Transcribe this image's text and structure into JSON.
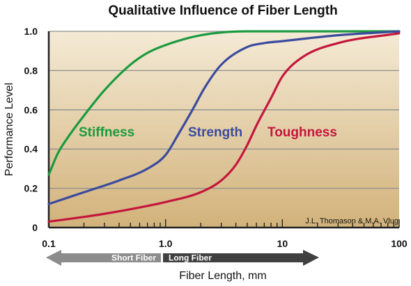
{
  "chart_data": {
    "type": "line",
    "title": "Qualitative Influence of Fiber Length",
    "xlabel": "Fiber Length, mm",
    "ylabel": "Performance Level",
    "xscale": "log",
    "xlim": [
      0.1,
      100
    ],
    "ylim": [
      0,
      1.0
    ],
    "grid": true,
    "x_ticks": [
      "0.1",
      "1.0",
      "10",
      "100"
    ],
    "y_ticks": [
      "0",
      "0.2",
      "0.4",
      "0.6",
      "0.8",
      "1.0"
    ],
    "series": [
      {
        "name": "Stiffness",
        "color": "#1a9a3e",
        "x": [
          0.1,
          0.12,
          0.15,
          0.2,
          0.3,
          0.5,
          0.7,
          1,
          2,
          5,
          10,
          30,
          100
        ],
        "y": [
          0.27,
          0.38,
          0.47,
          0.57,
          0.7,
          0.83,
          0.89,
          0.93,
          0.98,
          1.0,
          1.0,
          1.0,
          1.0
        ]
      },
      {
        "name": "Strength",
        "color": "#3a4a9e",
        "x": [
          0.1,
          0.2,
          0.4,
          0.7,
          1,
          1.3,
          1.7,
          2.2,
          3,
          5,
          7,
          10,
          30,
          100
        ],
        "y": [
          0.12,
          0.18,
          0.24,
          0.3,
          0.37,
          0.48,
          0.6,
          0.72,
          0.83,
          0.92,
          0.94,
          0.95,
          0.98,
          1.0
        ]
      },
      {
        "name": "Toughness",
        "color": "#c4163c",
        "x": [
          0.1,
          0.3,
          0.7,
          1,
          2,
          3,
          4,
          5,
          6,
          8,
          10,
          15,
          30,
          100
        ],
        "y": [
          0.03,
          0.07,
          0.11,
          0.13,
          0.18,
          0.24,
          0.32,
          0.42,
          0.52,
          0.66,
          0.77,
          0.87,
          0.94,
          0.99
        ]
      }
    ],
    "annotations": {
      "credit": "J.L. Thomason & M.A. Vlug",
      "short_fiber": "Short Fiber",
      "long_fiber": "Long Fiber"
    }
  }
}
